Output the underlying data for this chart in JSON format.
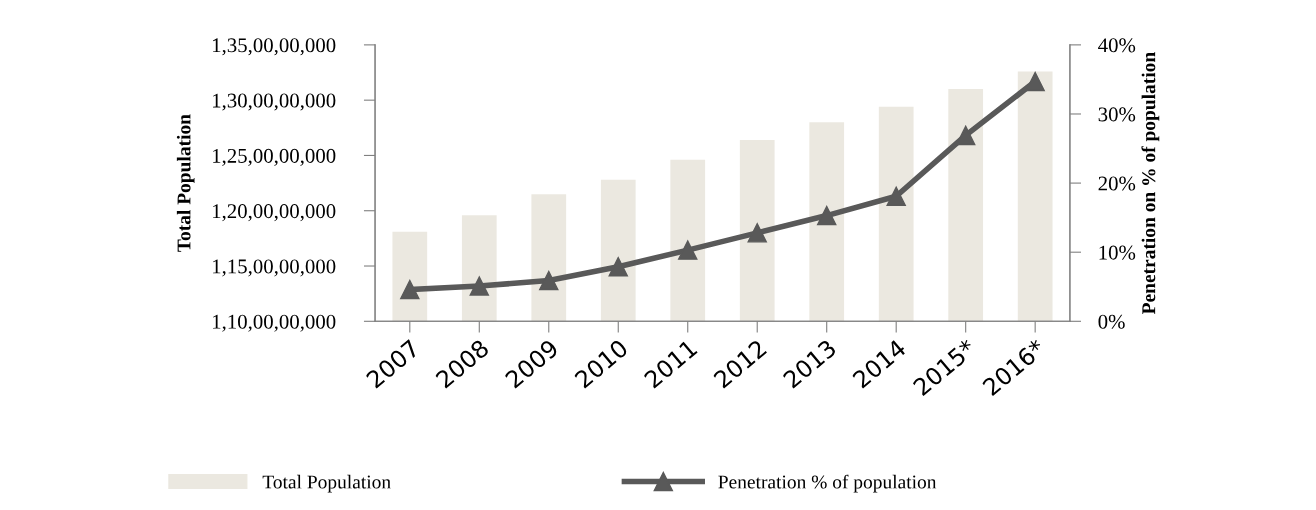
{
  "chart_data": {
    "type": "bar",
    "ylabel": "Total Population",
    "y2label": "Penetration on % of population",
    "categories": [
      "2007",
      "2008",
      "2009",
      "2010",
      "2011",
      "2012",
      "2013",
      "2014",
      "2015*",
      "2016*"
    ],
    "series": [
      {
        "name": "Total Population",
        "color": "#ebe8e0",
        "values": [
          1181000000,
          1196000000,
          1215000000,
          1228000000,
          1246000000,
          1264000000,
          1280000000,
          1294000000,
          1310000000,
          1326000000
        ]
      },
      {
        "name": "Penetration % of population",
        "type": "line",
        "axis": "y2",
        "color": "#595959",
        "marker": "triangle",
        "values": [
          4.6,
          5.1,
          5.9,
          7.9,
          10.3,
          12.8,
          15.3,
          18.1,
          26.9,
          34.7
        ]
      }
    ],
    "ylim": [
      1100000000,
      1350000000
    ],
    "yticks": [
      {
        "value": 1100000000,
        "label": "1,10,00,00,000"
      },
      {
        "value": 1150000000,
        "label": "1,15,00,00,000"
      },
      {
        "value": 1200000000,
        "label": "1,20,00,00,000"
      },
      {
        "value": 1250000000,
        "label": "1,25,00,00,000"
      },
      {
        "value": 1300000000,
        "label": "1,30,00,00,000"
      },
      {
        "value": 1350000000,
        "label": "1,35,00,00,000"
      }
    ],
    "y2lim": [
      0,
      40
    ],
    "y2ticks": [
      {
        "value": 0,
        "label": "0%"
      },
      {
        "value": 10,
        "label": "10%"
      },
      {
        "value": 20,
        "label": "20%"
      },
      {
        "value": 30,
        "label": "30%"
      },
      {
        "value": 40,
        "label": "40%"
      }
    ],
    "legend": "bottom",
    "grid": false
  }
}
